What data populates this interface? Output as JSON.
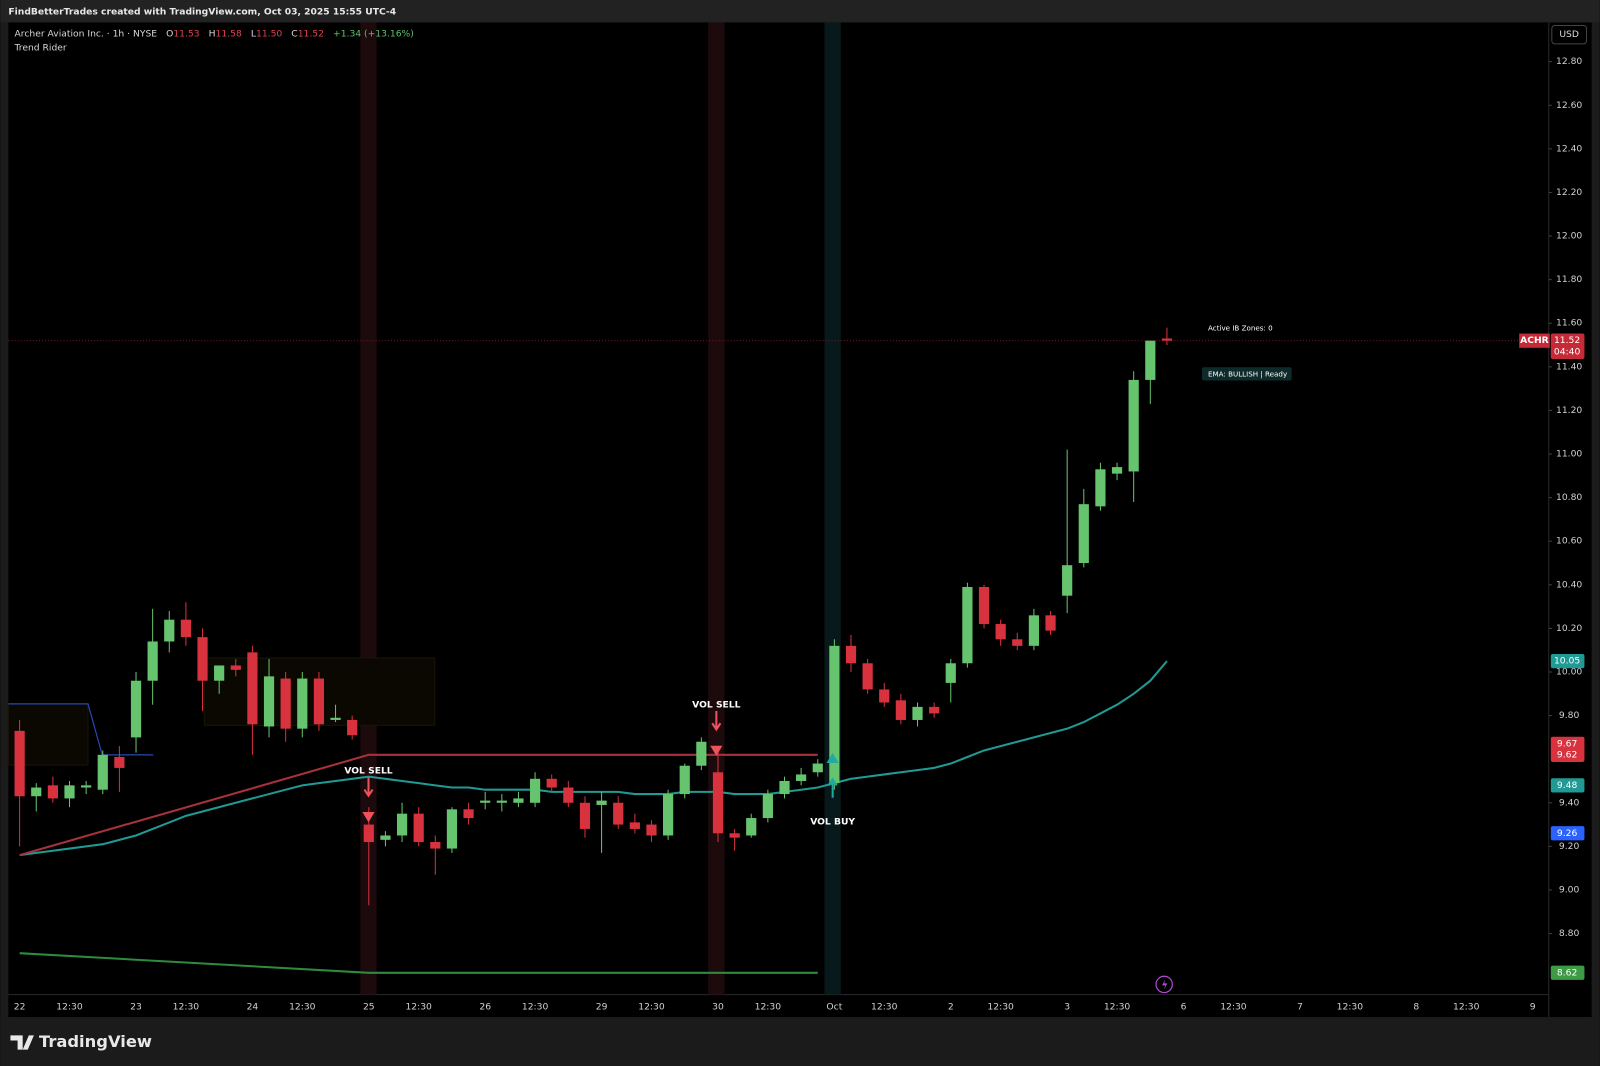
{
  "header": {
    "text": "FindBetterTrades created with TradingView.com, Oct 03, 2025 15:55 UTC-4"
  },
  "legend": {
    "symbol": "Archer Aviation Inc. · 1h · NYSE",
    "o_label": "O",
    "o_value": "11.53",
    "h_label": "H",
    "h_value": "11.58",
    "l_label": "L",
    "l_value": "11.50",
    "c_label": "C",
    "c_value": "11.52",
    "change": "+1.34 (+13.16%)",
    "indicator": "Trend Rider"
  },
  "currency": "USD",
  "brand": "TradingView",
  "chart_data": {
    "type": "candlestick",
    "up_color": "#66c46e",
    "down_color": "#d8323f",
    "open": [
      9.73,
      9.43,
      9.48,
      9.42,
      9.47,
      9.46,
      9.61,
      9.7,
      9.96,
      10.14,
      10.24,
      10.16,
      9.96,
      10.03,
      10.09,
      9.75,
      9.97,
      9.74,
      9.97,
      9.78,
      9.78,
      9.3,
      9.23,
      9.25,
      9.35,
      9.22,
      9.19,
      9.37,
      9.4,
      9.4,
      9.4,
      9.4,
      9.51,
      9.47,
      9.4,
      9.39,
      9.4,
      9.31,
      9.3,
      9.25,
      9.44,
      9.57,
      9.54,
      9.26,
      9.25,
      9.33,
      9.44,
      9.5,
      9.54,
      9.49,
      10.12,
      10.04,
      9.92,
      9.87,
      9.78,
      9.84,
      9.95,
      10.04,
      10.39,
      10.22,
      10.15,
      10.12,
      10.26,
      10.35,
      10.5,
      10.76,
      10.91,
      10.92,
      11.34,
      11.53
    ],
    "high": [
      9.78,
      9.49,
      9.52,
      9.5,
      9.5,
      9.64,
      9.66,
      10.0,
      10.29,
      10.28,
      10.32,
      10.2,
      10.0,
      10.06,
      10.12,
      10.06,
      10.0,
      10.0,
      10.0,
      9.85,
      9.8,
      9.38,
      9.27,
      9.4,
      9.38,
      9.25,
      9.38,
      9.4,
      9.45,
      9.44,
      9.45,
      9.54,
      9.53,
      9.5,
      9.43,
      9.45,
      9.43,
      9.35,
      9.32,
      9.46,
      9.58,
      9.7,
      9.64,
      9.28,
      9.35,
      9.46,
      9.52,
      9.56,
      9.6,
      10.15,
      10.17,
      10.06,
      9.95,
      9.9,
      9.86,
      9.86,
      10.06,
      10.41,
      10.4,
      10.24,
      10.18,
      10.29,
      10.28,
      11.02,
      10.84,
      10.96,
      10.96,
      11.38,
      11.52,
      11.58
    ],
    "low": [
      9.2,
      9.36,
      9.4,
      9.38,
      9.44,
      9.44,
      9.45,
      9.63,
      9.85,
      10.09,
      10.12,
      9.82,
      9.9,
      9.98,
      9.62,
      9.7,
      9.68,
      9.7,
      9.73,
      9.77,
      9.69,
      8.93,
      9.2,
      9.22,
      9.2,
      9.07,
      9.17,
      9.3,
      9.37,
      9.36,
      9.38,
      9.38,
      9.45,
      9.38,
      9.24,
      9.17,
      9.28,
      9.26,
      9.22,
      9.23,
      9.42,
      9.55,
      9.22,
      9.18,
      9.24,
      9.31,
      9.42,
      9.48,
      9.52,
      9.46,
      10.0,
      9.9,
      9.84,
      9.76,
      9.75,
      9.79,
      9.86,
      10.02,
      10.2,
      10.12,
      10.1,
      10.1,
      10.17,
      10.27,
      10.48,
      10.74,
      10.88,
      10.78,
      11.23,
      11.5
    ],
    "close": [
      9.43,
      9.47,
      9.42,
      9.48,
      9.48,
      9.62,
      9.56,
      9.96,
      10.14,
      10.24,
      10.16,
      9.96,
      10.03,
      10.01,
      9.76,
      9.98,
      9.74,
      9.97,
      9.76,
      9.79,
      9.71,
      9.22,
      9.25,
      9.35,
      9.22,
      9.19,
      9.37,
      9.33,
      9.41,
      9.41,
      9.42,
      9.51,
      9.47,
      9.4,
      9.28,
      9.41,
      9.3,
      9.28,
      9.25,
      9.44,
      9.57,
      9.68,
      9.26,
      9.24,
      9.33,
      9.44,
      9.5,
      9.53,
      9.58,
      10.12,
      10.04,
      9.92,
      9.86,
      9.78,
      9.84,
      9.81,
      10.04,
      10.39,
      10.22,
      10.15,
      10.12,
      10.26,
      10.19,
      10.49,
      10.77,
      10.93,
      10.94,
      11.34,
      11.52,
      11.52
    ],
    "series": [
      {
        "name": "EMA",
        "color": "#1f9a94",
        "values": [
          9.16,
          9.17,
          9.18,
          9.19,
          9.2,
          9.21,
          9.23,
          9.25,
          9.28,
          9.31,
          9.34,
          9.36,
          9.38,
          9.4,
          9.42,
          9.44,
          9.46,
          9.48,
          9.49,
          9.5,
          9.51,
          9.52,
          9.51,
          9.5,
          9.49,
          9.48,
          9.47,
          9.47,
          9.46,
          9.46,
          9.46,
          9.46,
          9.45,
          9.45,
          9.45,
          9.45,
          9.45,
          9.44,
          9.44,
          9.44,
          9.45,
          9.45,
          9.45,
          9.44,
          9.44,
          9.44,
          9.45,
          9.46,
          9.47,
          9.49,
          9.51,
          9.52,
          9.53,
          9.54,
          9.55,
          9.56,
          9.58,
          9.61,
          9.64,
          9.66,
          9.68,
          9.7,
          9.72,
          9.74,
          9.77,
          9.81,
          9.85,
          9.9,
          9.96,
          10.05
        ]
      },
      {
        "name": "Resistance",
        "color": "#a8323b",
        "x": [
          0,
          21,
          48
        ],
        "values": [
          9.16,
          9.62,
          9.62
        ]
      },
      {
        "name": "Support",
        "color": "#2e8b3e",
        "x": [
          0,
          21,
          48
        ],
        "values": [
          8.71,
          8.62,
          8.62
        ]
      }
    ],
    "ylim": [
      8.52,
      12.98
    ],
    "yticks": [
      {
        "value": 12.8,
        "label": "12.80"
      },
      {
        "value": 12.6,
        "label": "12.60"
      },
      {
        "value": 12.4,
        "label": "12.40"
      },
      {
        "value": 12.2,
        "label": "12.20"
      },
      {
        "value": 12.0,
        "label": "12.00"
      },
      {
        "value": 11.8,
        "label": "11.80"
      },
      {
        "value": 11.6,
        "label": "11.60"
      },
      {
        "value": 11.4,
        "label": "11.40"
      },
      {
        "value": 11.2,
        "label": "11.20"
      },
      {
        "value": 11.0,
        "label": "11.00"
      },
      {
        "value": 10.8,
        "label": "10.80"
      },
      {
        "value": 10.6,
        "label": "10.60"
      },
      {
        "value": 10.4,
        "label": "10.40"
      },
      {
        "value": 10.2,
        "label": "10.20"
      },
      {
        "value": 10.0,
        "label": "10.00"
      },
      {
        "value": 9.8,
        "label": "9.80"
      },
      {
        "value": 9.4,
        "label": "9.40"
      },
      {
        "value": 9.2,
        "label": "9.20"
      },
      {
        "value": 9.0,
        "label": "9.00"
      },
      {
        "value": 8.8,
        "label": "8.80"
      }
    ],
    "xticklabels": [
      "22",
      "12:30",
      "23",
      "12:30",
      "24",
      "12:30",
      "25",
      "12:30",
      "26",
      "12:30",
      "29",
      "12:30",
      "30",
      "12:30",
      "Oct",
      "12:30",
      "2",
      "12:30",
      "3",
      "12:30",
      "6",
      "12:30",
      "7",
      "12:30",
      "8",
      "12:30",
      "9"
    ],
    "last_price": {
      "symbol": "ACHR",
      "value": 11.52,
      "countdown": "04:40",
      "color": "#c62a36"
    },
    "price_badges": [
      {
        "value": 10.05,
        "color": "#1f9a94"
      },
      {
        "value": 9.67,
        "color": "#d8323f"
      },
      {
        "value": 9.62,
        "color": "#d8323f"
      },
      {
        "value": 9.48,
        "color": "#1f9a94"
      },
      {
        "value": 9.26,
        "color": "#2962ff"
      },
      {
        "value": 8.62,
        "color": "#3d9b45"
      }
    ],
    "signals": [
      {
        "text": "VOL SELL"
      },
      {
        "text": "VOL SELL"
      },
      {
        "text": "VOL BUY"
      }
    ],
    "annotations": [
      "Active IB Zones: 0",
      "EMA: BULLISH | Ready"
    ]
  }
}
